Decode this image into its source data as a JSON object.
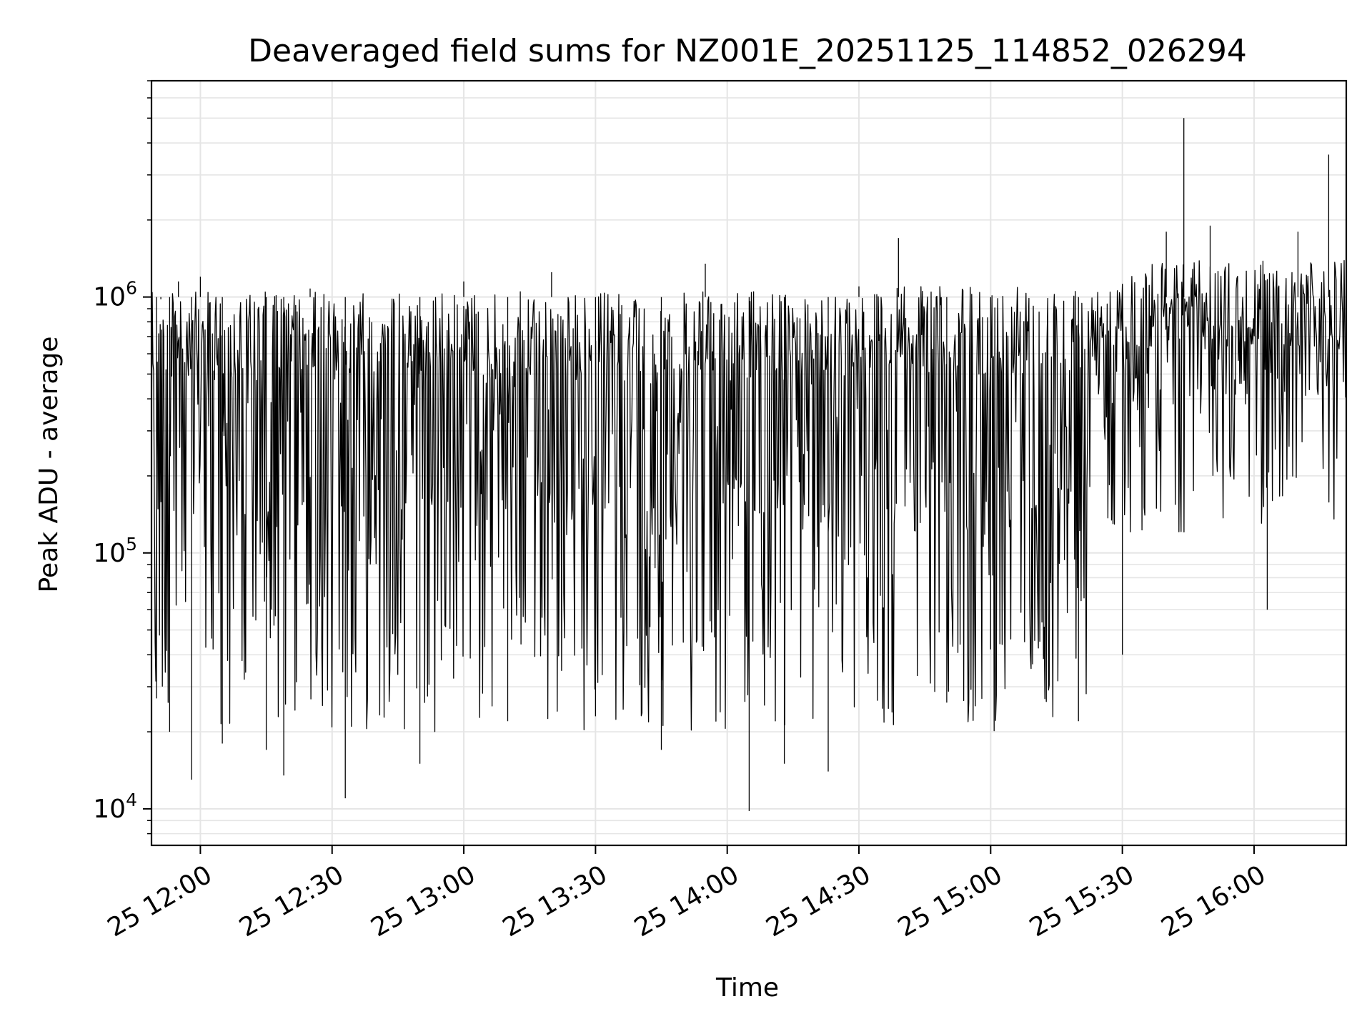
{
  "chart_data": {
    "type": "line",
    "title": "Deaveraged field sums for NZ001E_20251125_114852_026294",
    "xlabel": "Time",
    "ylabel": "Peak ADU - average",
    "yscale": "log",
    "xlim": [
      "2025-11-25 11:48:52",
      "2025-11-25 16:21:00"
    ],
    "ylim": [
      7200,
      7000000
    ],
    "grid": true,
    "line_color": "#000000",
    "grid_color": "#e5e5e5",
    "x_ticks": [
      {
        "time": "2025-11-25 12:00",
        "label": "25 12:00"
      },
      {
        "time": "2025-11-25 12:30",
        "label": "25 12:30"
      },
      {
        "time": "2025-11-25 13:00",
        "label": "25 13:00"
      },
      {
        "time": "2025-11-25 13:30",
        "label": "25 13:30"
      },
      {
        "time": "2025-11-25 14:00",
        "label": "25 14:00"
      },
      {
        "time": "2025-11-25 14:30",
        "label": "25 14:30"
      },
      {
        "time": "2025-11-25 15:00",
        "label": "25 15:00"
      },
      {
        "time": "2025-11-25 15:30",
        "label": "25 15:30"
      },
      {
        "time": "2025-11-25 16:00",
        "label": "25 16:00"
      }
    ],
    "y_ticks": [
      {
        "value": 10000,
        "base": "10",
        "exp": "4"
      },
      {
        "value": 100000,
        "base": "10",
        "exp": "5"
      },
      {
        "value": 1000000,
        "base": "10",
        "exp": "6"
      }
    ],
    "series_points_estimated": [
      [
        "2025-11-25 11:49",
        740000
      ],
      [
        "2025-11-25 11:50",
        27000
      ],
      [
        "2025-11-25 11:51",
        980000
      ],
      [
        "2025-11-25 11:53",
        20000
      ],
      [
        "2025-11-25 11:55",
        1150000
      ],
      [
        "2025-11-25 11:58",
        13000
      ],
      [
        "2025-11-25 12:00",
        1200000
      ],
      [
        "2025-11-25 12:05",
        18000
      ],
      [
        "2025-11-25 12:10",
        1000000
      ],
      [
        "2025-11-25 12:15",
        17000
      ],
      [
        "2025-11-25 12:19",
        13500
      ],
      [
        "2025-11-25 12:25",
        1080000
      ],
      [
        "2025-11-25 12:33",
        11000
      ],
      [
        "2025-11-25 12:40",
        1000000
      ],
      [
        "2025-11-25 12:50",
        15000
      ],
      [
        "2025-11-25 13:00",
        1150000
      ],
      [
        "2025-11-25 13:10",
        22000
      ],
      [
        "2025-11-25 13:20",
        1250000
      ],
      [
        "2025-11-25 13:30",
        23000
      ],
      [
        "2025-11-25 13:45",
        17000
      ],
      [
        "2025-11-25 13:55",
        1350000
      ],
      [
        "2025-11-25 14:05",
        9800
      ],
      [
        "2025-11-25 14:13",
        15000
      ],
      [
        "2025-11-25 14:23",
        14000
      ],
      [
        "2025-11-25 14:30",
        1100000
      ],
      [
        "2025-11-25 14:39",
        1700000
      ],
      [
        "2025-11-25 14:50",
        26000
      ],
      [
        "2025-11-25 15:00",
        42000
      ],
      [
        "2025-11-25 15:20",
        22000
      ],
      [
        "2025-11-25 15:30",
        40000
      ],
      [
        "2025-11-25 15:40",
        1800000
      ],
      [
        "2025-11-25 15:44",
        5000000
      ],
      [
        "2025-11-25 15:50",
        1900000
      ],
      [
        "2025-11-25 16:03",
        60000
      ],
      [
        "2025-11-25 16:10",
        1800000
      ],
      [
        "2025-11-25 16:17",
        3600000
      ],
      [
        "2025-11-25 16:21",
        380000
      ]
    ]
  }
}
